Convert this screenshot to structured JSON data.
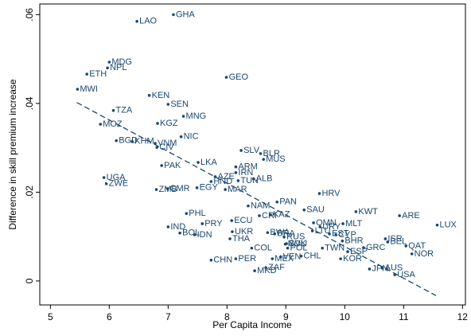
{
  "chart_data": {
    "type": "scatter",
    "x_label": "Per Capita Income",
    "y_label": "Difference in skill premium increase",
    "color": "#1a476f",
    "xlim": [
      4.82,
      12.05
    ],
    "ylim": [
      -0.0054,
      0.0624
    ],
    "xticks": [
      5,
      6,
      7,
      8,
      9,
      10,
      11,
      12
    ],
    "yticks": [
      0,
      {
        "value": 0.02,
        "label": ".02"
      },
      {
        "value": 0.04,
        "label": ".04"
      },
      {
        "value": 0.06,
        "label": ".06"
      }
    ],
    "labels": [
      "GHA",
      "LAO",
      "MDG",
      "NPL",
      "ETH",
      "MWI",
      "GEO",
      "KEN",
      "SEN",
      "TZA",
      "MNG",
      "KGZ",
      "MOZ",
      "NIC",
      "BGD",
      "KHM",
      "VNM",
      "CIV",
      "PAK",
      "LKA",
      "SLV",
      "BLR",
      "MUS",
      "ARM",
      "IRN",
      "AZE",
      "ALB",
      "HND",
      "TUN",
      "UGA",
      "ZWE",
      "ZMB",
      "CMR",
      "EGY",
      "MAR",
      "HRV",
      "PAN",
      "NAM",
      "SAU",
      "CRI",
      "KAZ",
      "KWT",
      "ARE",
      "LUX",
      "PHL",
      "PRY",
      "ECU",
      "OMN",
      "MLT",
      "URY",
      "IND",
      "BOL",
      "IDN",
      "UKR",
      "BWA",
      "BRA",
      "CYP",
      "LTU",
      "EST",
      "THA",
      "RUS",
      "BHR",
      "ISR",
      "BEL",
      "SVK",
      "ROU",
      "GRC",
      "QAT",
      "COL",
      "CHN",
      "PER",
      "MEX",
      "VEN",
      "ZAF",
      "MKD",
      "TWN",
      "KOR",
      "JPN",
      "USA",
      "AUS",
      "NOR",
      "POL",
      "CHL",
      "ESP"
    ],
    "x": [
      7.09,
      6.47,
      6.0,
      5.97,
      5.62,
      5.46,
      7.99,
      6.68,
      7.0,
      6.07,
      7.26,
      6.82,
      5.85,
      7.22,
      6.12,
      6.39,
      6.78,
      6.81,
      6.89,
      7.51,
      8.24,
      8.57,
      8.62,
      8.15,
      8.15,
      7.8,
      8.45,
      7.73,
      8.19,
      5.91,
      5.95,
      6.8,
      6.99,
      7.49,
      7.97,
      9.57,
      8.85,
      8.36,
      9.31,
      8.55,
      8.74,
      10.19,
      10.93,
      11.57,
      7.31,
      7.58,
      8.08,
      9.47,
      9.97,
      9.58,
      7.0,
      7.2,
      7.45,
      8.09,
      8.69,
      8.81,
      9.85,
      9.45,
      9.74,
      8.05,
      8.97,
      9.96,
      10.69,
      10.73,
      9.01,
      8.99,
      10.32,
      11.04,
      8.42,
      7.73,
      8.15,
      8.77,
      8.91,
      8.66,
      8.47,
      9.62,
      9.93,
      10.42,
      10.85,
      10.64,
      11.14,
      9.03,
      9.26,
      10.05
    ],
    "y": [
      0.06,
      0.0585,
      0.0493,
      0.048,
      0.0466,
      0.0432,
      0.0459,
      0.0418,
      0.0398,
      0.0384,
      0.0371,
      0.0355,
      0.0353,
      0.0325,
      0.0316,
      0.0314,
      0.031,
      0.0301,
      0.026,
      0.0267,
      0.0294,
      0.0287,
      0.0274,
      0.0257,
      0.0244,
      0.0235,
      0.023,
      0.0224,
      0.0226,
      0.0233,
      0.0219,
      0.0206,
      0.0208,
      0.021,
      0.0206,
      0.0197,
      0.0178,
      0.0169,
      0.016,
      0.0147,
      0.0149,
      0.0156,
      0.0147,
      0.0126,
      0.0152,
      0.0129,
      0.0136,
      0.0131,
      0.0129,
      0.0122,
      0.0122,
      0.0108,
      0.0104,
      0.0111,
      0.0109,
      0.0106,
      0.0104,
      0.0113,
      0.0106,
      0.0095,
      0.0099,
      0.009,
      0.0095,
      0.0088,
      0.0084,
      0.0083,
      0.0075,
      0.0079,
      0.0074,
      0.0047,
      0.005,
      0.005,
      0.0054,
      0.003,
      0.0023,
      0.0074,
      0.005,
      0.0027,
      0.0014,
      0.0029,
      0.0061,
      0.0074,
      0.0056,
      0.0066
    ],
    "fit_line": {
      "x": [
        5.45,
        11.55
      ],
      "y": [
        0.0402,
        -0.0033
      ]
    }
  }
}
